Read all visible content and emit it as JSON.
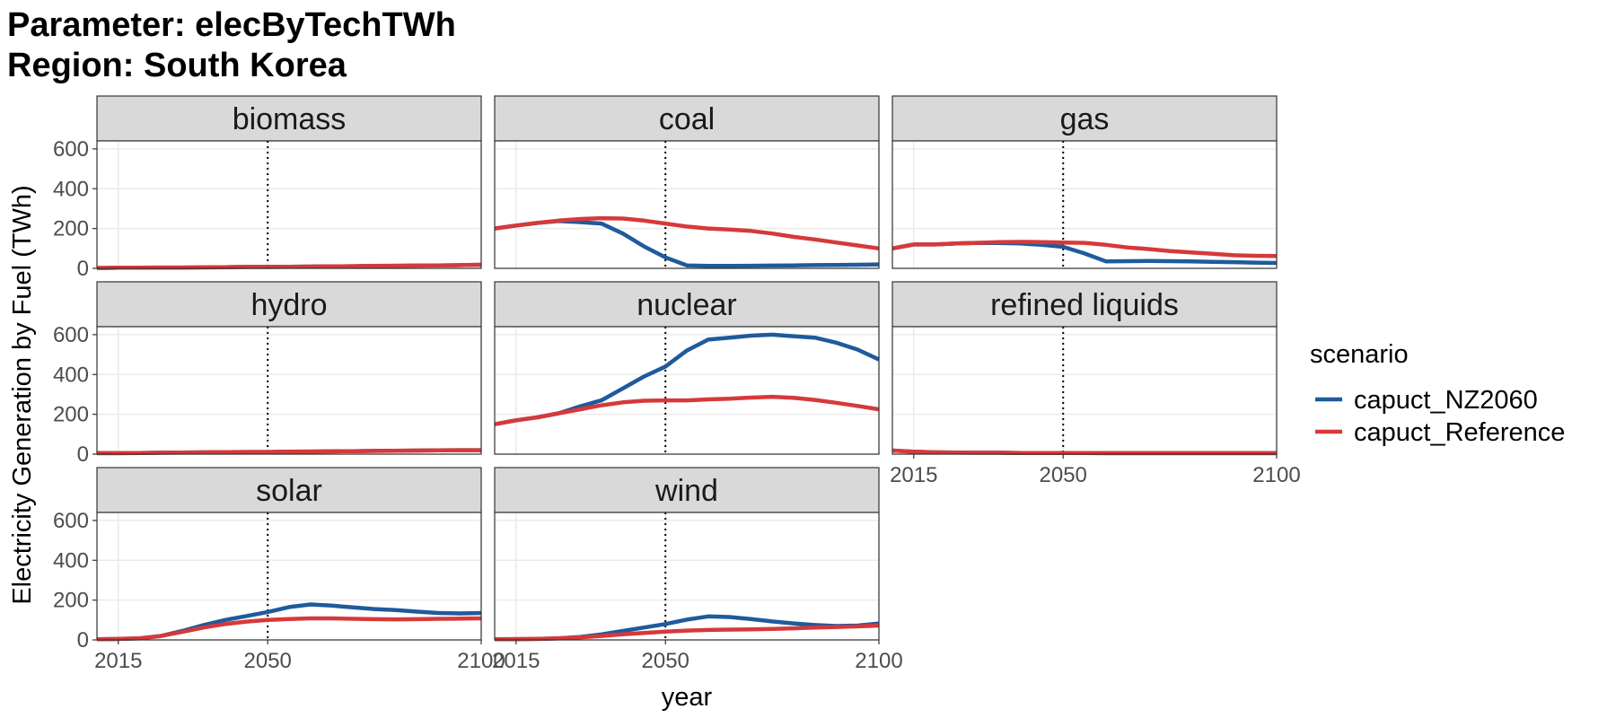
{
  "title": {
    "line1": "Parameter: elecByTechTWh",
    "line2": "Region: South Korea"
  },
  "chart_data": {
    "type": "line",
    "xlabel": "year",
    "ylabel": "Electricity Generation by Fuel (TWh)",
    "xlim": [
      2010,
      2100
    ],
    "ylim": [
      0,
      640
    ],
    "x_ticks": [
      2015,
      2050,
      2100
    ],
    "y_ticks": [
      0,
      200,
      400,
      600
    ],
    "vline_x": 2050,
    "grid": true,
    "legend_title": "scenario",
    "legend_position": "right",
    "series_meta": [
      {
        "name": "capuct_NZ2060",
        "color": "#1f5a9c"
      },
      {
        "name": "capuct_Reference",
        "color": "#d6393a"
      }
    ],
    "x": [
      2010,
      2015,
      2020,
      2025,
      2030,
      2035,
      2040,
      2045,
      2050,
      2055,
      2060,
      2065,
      2070,
      2075,
      2080,
      2085,
      2090,
      2095,
      2100
    ],
    "facets": [
      {
        "name": "biomass",
        "series": [
          {
            "name": "capuct_NZ2060",
            "values": [
              2,
              3,
              3,
              4,
              4,
              5,
              6,
              7,
              7,
              8,
              9,
              10,
              11,
              12,
              13,
              14,
              15,
              16,
              18
            ]
          },
          {
            "name": "capuct_Reference",
            "values": [
              2,
              3,
              3,
              4,
              4,
              5,
              6,
              7,
              7,
              8,
              9,
              10,
              11,
              12,
              13,
              14,
              15,
              16,
              18
            ]
          }
        ]
      },
      {
        "name": "coal",
        "series": [
          {
            "name": "capuct_NZ2060",
            "values": [
              200,
              215,
              228,
              238,
              232,
              225,
              175,
              110,
              55,
              15,
              12,
              12,
              13,
              14,
              15,
              16,
              17,
              18,
              20
            ]
          },
          {
            "name": "capuct_Reference",
            "values": [
              200,
              215,
              228,
              240,
              248,
              252,
              250,
              240,
              225,
              210,
              200,
              195,
              188,
              175,
              158,
              145,
              130,
              115,
              100
            ]
          }
        ]
      },
      {
        "name": "gas",
        "series": [
          {
            "name": "capuct_NZ2060",
            "values": [
              100,
              120,
              120,
              125,
              128,
              127,
              125,
              118,
              108,
              75,
              35,
              36,
              37,
              36,
              35,
              33,
              31,
              29,
              27
            ]
          },
          {
            "name": "capuct_Reference",
            "values": [
              100,
              120,
              120,
              125,
              128,
              132,
              133,
              132,
              130,
              128,
              118,
              105,
              97,
              87,
              80,
              73,
              66,
              63,
              62
            ]
          }
        ]
      },
      {
        "name": "hydro",
        "series": [
          {
            "name": "capuct_NZ2060",
            "values": [
              5,
              5,
              6,
              7,
              8,
              9,
              10,
              11,
              11,
              12,
              13,
              14,
              15,
              16,
              17,
              18,
              19,
              20,
              20
            ]
          },
          {
            "name": "capuct_Reference",
            "values": [
              5,
              5,
              6,
              7,
              8,
              9,
              10,
              11,
              11,
              12,
              13,
              14,
              15,
              16,
              17,
              18,
              19,
              20,
              20
            ]
          }
        ]
      },
      {
        "name": "nuclear",
        "series": [
          {
            "name": "capuct_NZ2060",
            "values": [
              150,
              170,
              185,
              205,
              240,
              270,
              330,
              390,
              440,
              520,
              575,
              585,
              595,
              600,
              592,
              585,
              560,
              525,
              475
            ]
          },
          {
            "name": "capuct_Reference",
            "values": [
              150,
              170,
              185,
              205,
              225,
              245,
              260,
              268,
              270,
              270,
              275,
              278,
              284,
              288,
              283,
              272,
              258,
              242,
              225
            ]
          }
        ]
      },
      {
        "name": "refined liquids",
        "series": [
          {
            "name": "capuct_NZ2060",
            "values": [
              18,
              12,
              9,
              8,
              7,
              7,
              6,
              6,
              6,
              6,
              5,
              5,
              5,
              5,
              5,
              5,
              5,
              5,
              5
            ]
          },
          {
            "name": "capuct_Reference",
            "values": [
              18,
              12,
              9,
              8,
              7,
              7,
              6,
              6,
              6,
              6,
              5,
              5,
              5,
              5,
              5,
              5,
              5,
              5,
              5
            ]
          }
        ]
      },
      {
        "name": "solar",
        "series": [
          {
            "name": "capuct_NZ2060",
            "values": [
              3,
              5,
              8,
              20,
              45,
              75,
              100,
              120,
              140,
              165,
              178,
              172,
              163,
              155,
              150,
              142,
              135,
              133,
              135
            ]
          },
          {
            "name": "capuct_Reference",
            "values": [
              3,
              5,
              8,
              20,
              40,
              62,
              80,
              92,
              100,
              105,
              108,
              108,
              106,
              104,
              103,
              104,
              106,
              107,
              108
            ]
          }
        ]
      },
      {
        "name": "wind",
        "series": [
          {
            "name": "capuct_NZ2060",
            "values": [
              3,
              4,
              5,
              8,
              15,
              28,
              45,
              62,
              80,
              102,
              118,
              115,
              105,
              93,
              83,
              75,
              70,
              72,
              82
            ]
          },
          {
            "name": "capuct_Reference",
            "values": [
              3,
              4,
              5,
              8,
              13,
              20,
              28,
              35,
              42,
              47,
              50,
              52,
              53,
              55,
              58,
              62,
              65,
              68,
              72
            ]
          }
        ]
      }
    ]
  }
}
